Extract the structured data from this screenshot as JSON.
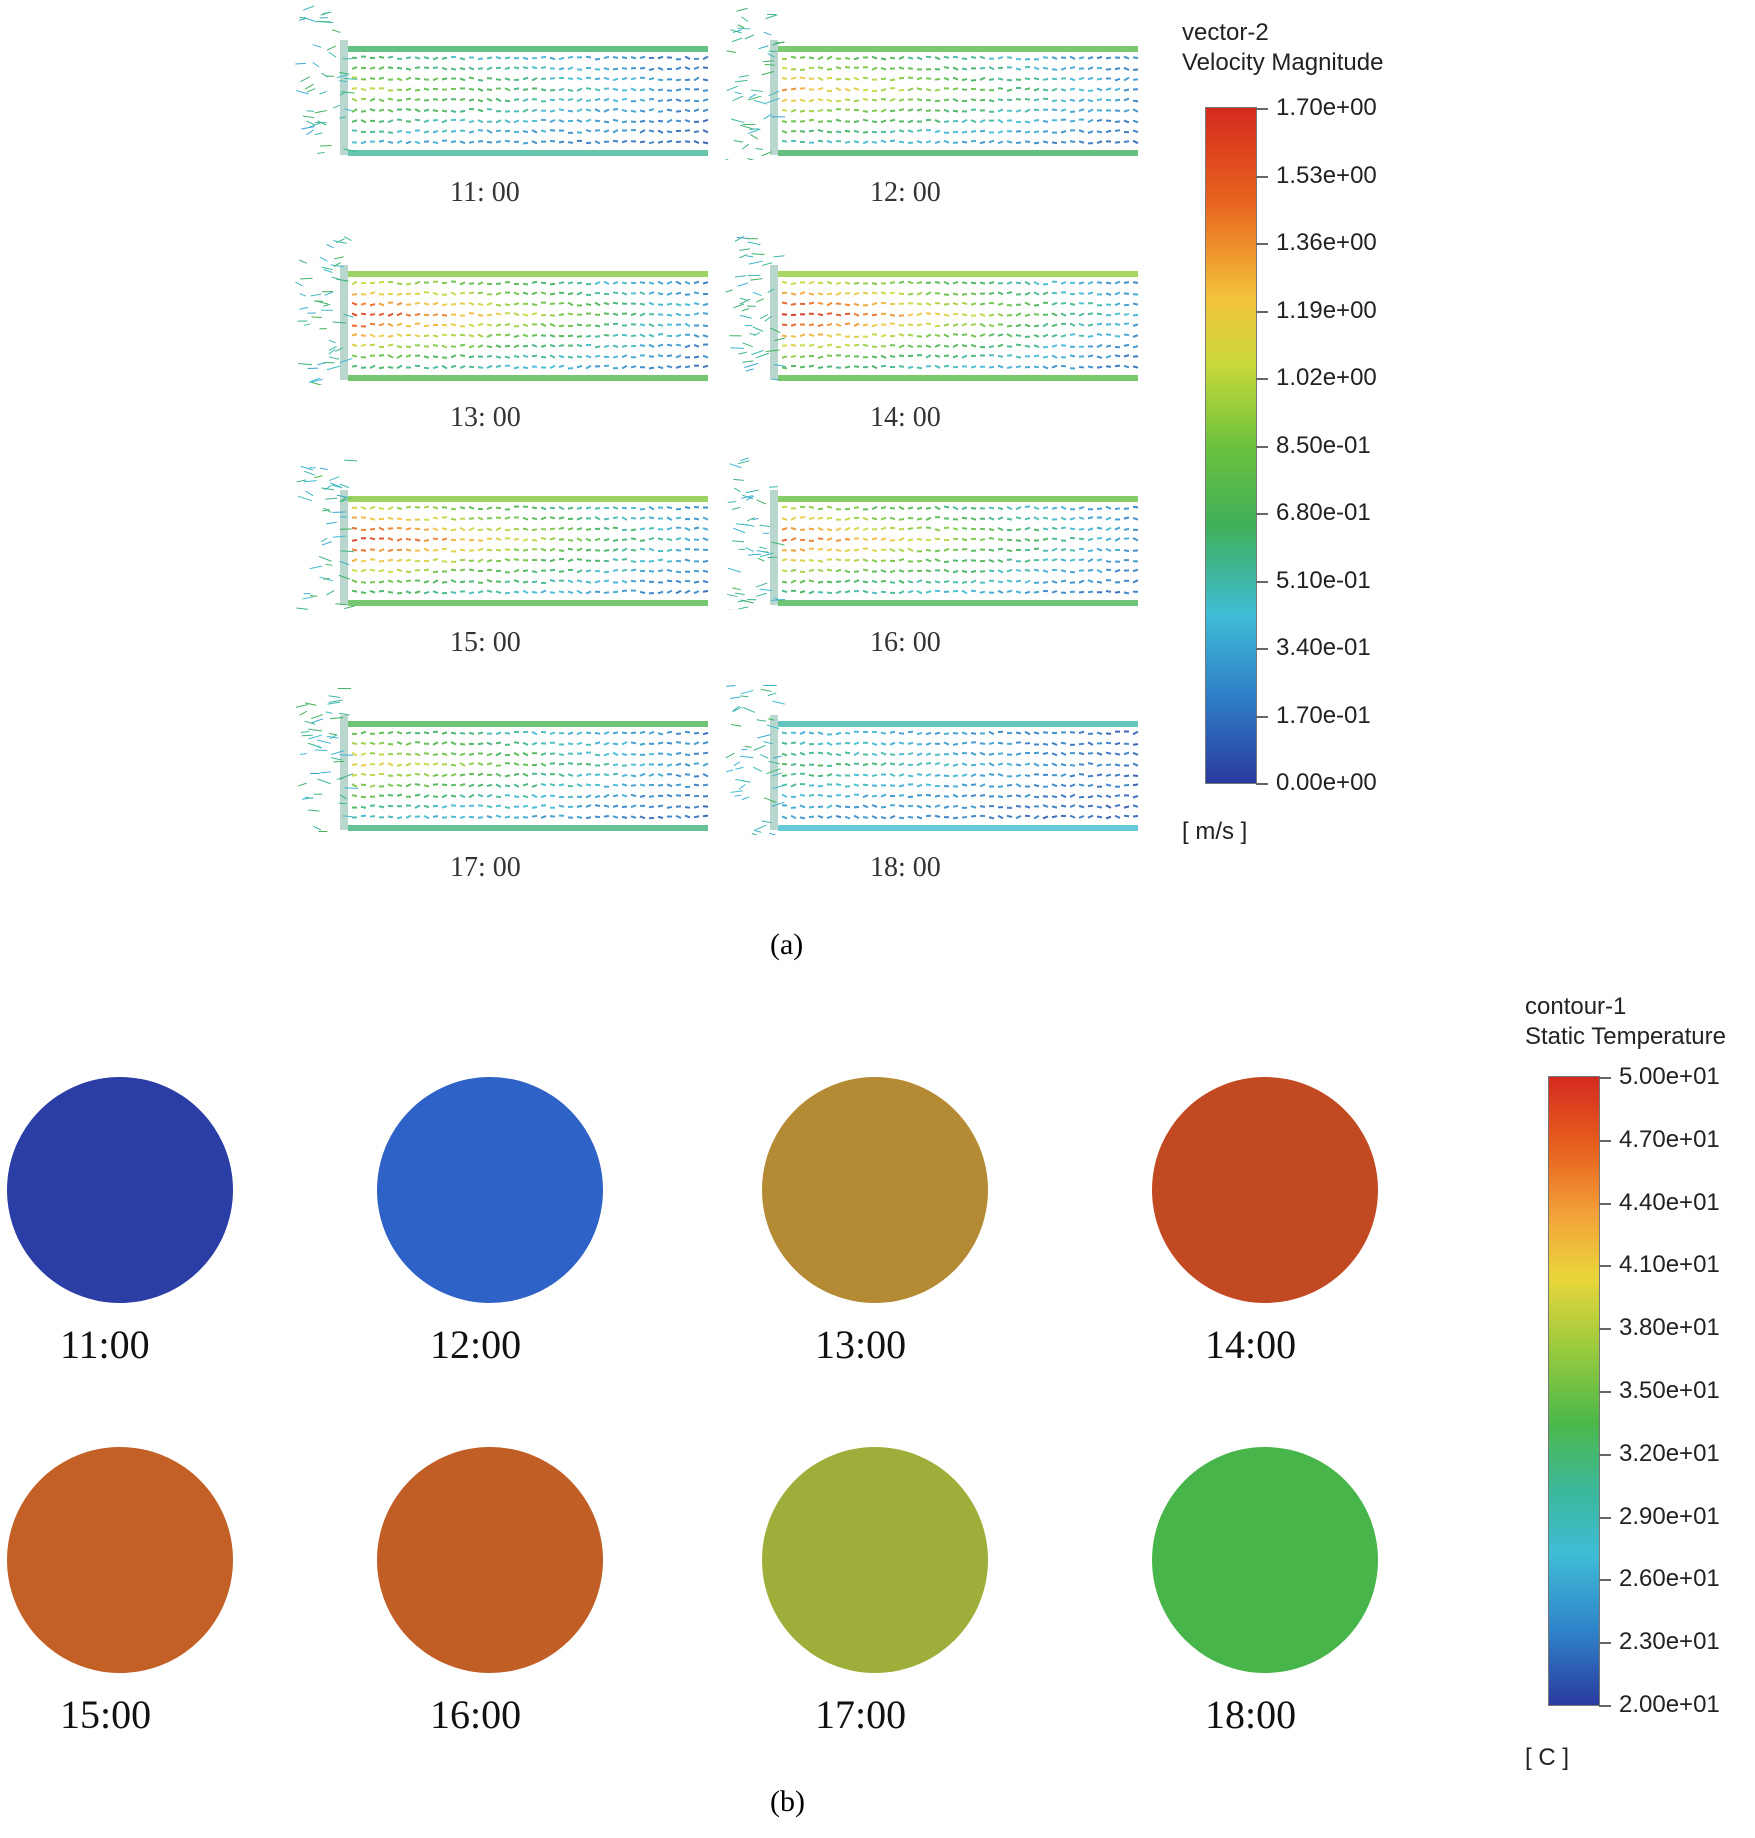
{
  "panel_a": {
    "caption": "(a)",
    "legend": {
      "title_line1": "vector-2",
      "title_line2": "Velocity Magnitude",
      "ticks": [
        "1.70e+00",
        "1.53e+00",
        "1.36e+00",
        "1.19e+00",
        "1.02e+00",
        "8.50e-01",
        "6.80e-01",
        "5.10e-01",
        "3.40e-01",
        "1.70e-01",
        "0.00e+00"
      ],
      "unit": "[ m/s ]"
    },
    "frames": [
      {
        "time": "11: 00",
        "intensity": 0.55
      },
      {
        "time": "12: 00",
        "intensity": 0.75
      },
      {
        "time": "13: 00",
        "intensity": 0.95
      },
      {
        "time": "14: 00",
        "intensity": 1.0
      },
      {
        "time": "15: 00",
        "intensity": 0.95
      },
      {
        "time": "16: 00",
        "intensity": 0.85
      },
      {
        "time": "17: 00",
        "intensity": 0.65
      },
      {
        "time": "18: 00",
        "intensity": 0.35
      }
    ]
  },
  "panel_b": {
    "caption": "(b)",
    "legend": {
      "title_line1": "contour-1",
      "title_line2": "Static Temperature",
      "ticks": [
        "5.00e+01",
        "4.70e+01",
        "4.40e+01",
        "4.10e+01",
        "3.80e+01",
        "3.50e+01",
        "3.20e+01",
        "2.90e+01",
        "2.60e+01",
        "2.30e+01",
        "2.00e+01"
      ],
      "unit": "[ C ]"
    },
    "frames": [
      {
        "time": "11:00",
        "fill": "#2b3ea6",
        "rim": "#2b3ea6"
      },
      {
        "time": "12:00",
        "fill": "#2f62c6",
        "rim": "#2d58bd"
      },
      {
        "time": "13:00",
        "fill": "#b48a34",
        "rim": "#5fbf3f"
      },
      {
        "time": "14:00",
        "fill": "#c24a22",
        "rim": "#7ec45a"
      },
      {
        "time": "15:00",
        "fill": "#c26026",
        "rim": "#6fc03e"
      },
      {
        "time": "16:00",
        "fill": "#c05e26",
        "rim": "#6fbf3e"
      },
      {
        "time": "17:00",
        "fill": "#9fae3a",
        "rim": "#49b844"
      },
      {
        "time": "18:00",
        "fill": "#47b54a",
        "rim": "#3fb0d0"
      }
    ]
  }
}
